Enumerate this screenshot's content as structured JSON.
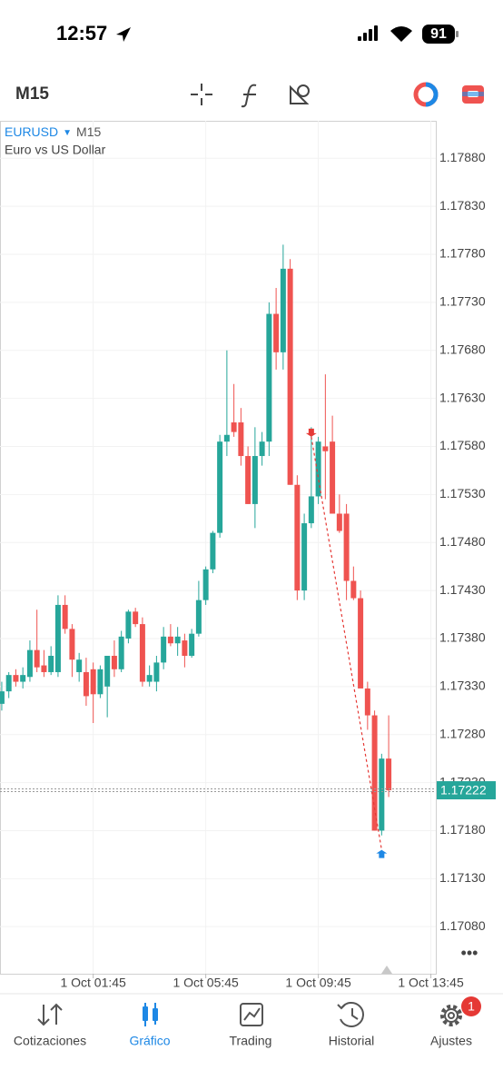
{
  "status_bar": {
    "time": "12:57",
    "battery": "91"
  },
  "toolbar": {
    "timeframe": "M15"
  },
  "chart_data": {
    "type": "candlestick",
    "symbol": "EURUSD",
    "timeframe": "M15",
    "description": "Euro vs US Dollar",
    "up_color": "#26a69a",
    "down_color": "#ef5350",
    "open": [
      1.17312,
      1.17325,
      1.17342,
      1.17335,
      1.1734,
      1.17368,
      1.17352,
      1.17345,
      1.17345,
      1.17415,
      1.1739,
      1.17345,
      1.17345,
      1.17348,
      1.17322,
      1.1733,
      1.17362,
      1.17348,
      1.1738,
      1.17408,
      1.17395,
      1.17335,
      1.17335,
      1.17355,
      1.17382,
      1.17375,
      1.17378,
      1.17362,
      1.17385,
      1.1742,
      1.17452,
      1.1749,
      1.17585,
      1.17605,
      1.17605,
      1.1757,
      1.1752,
      1.1757,
      1.17585,
      1.17718,
      1.17678,
      1.17765,
      1.1754,
      1.1743,
      1.175,
      1.17528,
      1.1758,
      1.17585,
      1.1751,
      1.1751,
      1.1744,
      1.17422,
      1.17328,
      1.173,
      1.1718,
      1.17255
    ],
    "high": [
      1.17335,
      1.17345,
      1.17348,
      1.1735,
      1.17378,
      1.1741,
      1.17368,
      1.17372,
      1.17425,
      1.17425,
      1.17395,
      1.17365,
      1.1736,
      1.17355,
      1.17352,
      1.17362,
      1.17378,
      1.17388,
      1.1741,
      1.17412,
      1.17402,
      1.17352,
      1.17362,
      1.17392,
      1.17395,
      1.17392,
      1.17385,
      1.1739,
      1.1744,
      1.17455,
      1.17492,
      1.17592,
      1.1768,
      1.17645,
      1.1762,
      1.1758,
      1.176,
      1.17595,
      1.1773,
      1.17745,
      1.1779,
      1.17775,
      1.1755,
      1.1751,
      1.176,
      1.1759,
      1.17655,
      1.17612,
      1.1753,
      1.1752,
      1.17455,
      1.1743,
      1.17335,
      1.17305,
      1.1726,
      1.173
    ],
    "low": [
      1.17305,
      1.17318,
      1.1733,
      1.17328,
      1.17335,
      1.17345,
      1.1734,
      1.17342,
      1.1734,
      1.17385,
      1.1734,
      1.17335,
      1.1731,
      1.17292,
      1.17318,
      1.17298,
      1.1734,
      1.17345,
      1.17375,
      1.17392,
      1.1733,
      1.1733,
      1.17325,
      1.17348,
      1.17372,
      1.17362,
      1.1735,
      1.1736,
      1.17382,
      1.17415,
      1.17448,
      1.17485,
      1.1757,
      1.1759,
      1.1756,
      1.1752,
      1.17495,
      1.1756,
      1.1757,
      1.1766,
      1.1766,
      1.1754,
      1.1742,
      1.1742,
      1.17495,
      1.1752,
      1.17525,
      1.1751,
      1.1749,
      1.1742,
      1.1742,
      1.1733,
      1.17285,
      1.1718,
      1.17175,
      1.17215
    ],
    "close": [
      1.17325,
      1.17342,
      1.17335,
      1.17342,
      1.17368,
      1.1735,
      1.17345,
      1.17362,
      1.17415,
      1.1739,
      1.17358,
      1.17358,
      1.1732,
      1.17322,
      1.17348,
      1.17362,
      1.17348,
      1.17382,
      1.17408,
      1.17395,
      1.17335,
      1.17342,
      1.17355,
      1.17382,
      1.17375,
      1.17382,
      1.17362,
      1.17385,
      1.1742,
      1.17452,
      1.1749,
      1.17585,
      1.17592,
      1.17595,
      1.1757,
      1.1752,
      1.1757,
      1.17585,
      1.17718,
      1.17678,
      1.17765,
      1.1754,
      1.1743,
      1.175,
      1.17528,
      1.17585,
      1.17575,
      1.1751,
      1.17492,
      1.1744,
      1.17422,
      1.17328,
      1.173,
      1.1718,
      1.17255,
      1.17222
    ],
    "xlim": [
      -0.25,
      61.7
    ],
    "ylim": [
      1.17031,
      1.17919
    ],
    "xticks": [
      {
        "value": 13,
        "label": "1 Oct 01:45"
      },
      {
        "value": 29,
        "label": "1 Oct 05:45"
      },
      {
        "value": 45,
        "label": "1 Oct 09:45"
      },
      {
        "value": 61,
        "label": "1 Oct 13:45"
      }
    ],
    "yticks": [
      {
        "value": 1.1788,
        "label": "1.17880"
      },
      {
        "value": 1.1783,
        "label": "1.17830"
      },
      {
        "value": 1.1778,
        "label": "1.17780"
      },
      {
        "value": 1.1773,
        "label": "1.17730"
      },
      {
        "value": 1.1768,
        "label": "1.17680"
      },
      {
        "value": 1.1763,
        "label": "1.17630"
      },
      {
        "value": 1.1758,
        "label": "1.17580"
      },
      {
        "value": 1.1753,
        "label": "1.17530"
      },
      {
        "value": 1.1748,
        "label": "1.17480"
      },
      {
        "value": 1.1743,
        "label": "1.17430"
      },
      {
        "value": 1.1738,
        "label": "1.17380"
      },
      {
        "value": 1.1733,
        "label": "1.17330"
      },
      {
        "value": 1.1728,
        "label": "1.17280"
      },
      {
        "value": 1.1723,
        "label": "1.17230"
      },
      {
        "value": 1.1718,
        "label": "1.17180"
      },
      {
        "value": 1.1713,
        "label": "1.17130"
      },
      {
        "value": 1.1708,
        "label": "1.17080"
      }
    ],
    "grid": true,
    "current_price": 1.17222,
    "orders": [
      {
        "side": "sell",
        "x": 44,
        "price": 1.1759,
        "color": "#e53935"
      },
      {
        "side": "buy",
        "x": 54,
        "price": 1.1716,
        "color": "#1e88e5"
      }
    ]
  },
  "tab_bar": {
    "active": 1,
    "badge": "1",
    "tabs": [
      {
        "label": "Cotizaciones"
      },
      {
        "label": "Gráfico"
      },
      {
        "label": "Trading"
      },
      {
        "label": "Historial"
      },
      {
        "label": "Ajustes"
      }
    ]
  }
}
